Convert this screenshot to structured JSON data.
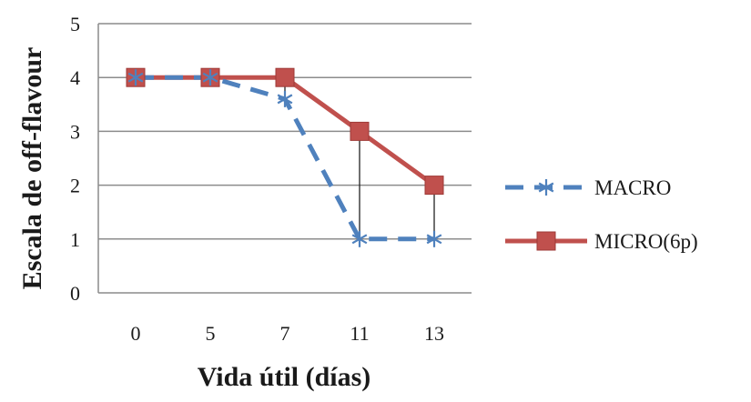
{
  "chart_data": {
    "type": "line",
    "categories": [
      "0",
      "5",
      "7",
      "11",
      "13"
    ],
    "series": [
      {
        "name": "MACRO",
        "values": [
          4,
          4,
          3.6,
          1,
          1
        ],
        "color": "#4f81bd",
        "line_style": "dashed",
        "marker": "asterisk"
      },
      {
        "name": "MICRO(6p)",
        "values": [
          4,
          4,
          4,
          3,
          2
        ],
        "color": "#c0504d",
        "line_style": "solid",
        "marker": "square"
      }
    ],
    "xlabel": "Vida útil (días)",
    "ylabel": "Escala de off-flavour",
    "ylim": [
      0,
      5
    ],
    "yticks": [
      "0",
      "1",
      "2",
      "3",
      "4",
      "5"
    ],
    "grid": "horizontal",
    "drop_lines": true,
    "legend_position": "right"
  }
}
